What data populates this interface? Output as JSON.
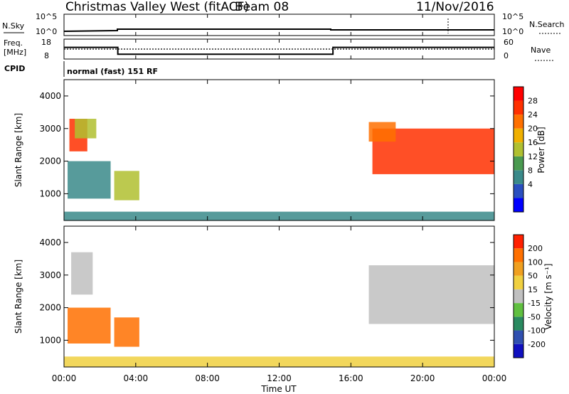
{
  "header": {
    "station": "Christmas Valley West (fitACF)",
    "beam": "Beam 08",
    "date": "11/Nov/2016"
  },
  "time_axis": {
    "label": "Time UT",
    "ticks": [
      "00:00",
      "04:00",
      "08:00",
      "12:00",
      "16:00",
      "20:00",
      "00:00"
    ]
  },
  "noise_panel": {
    "left_label": "N.Sky",
    "right_label": "N.Search",
    "ticks_left": [
      "10^5",
      "10^0"
    ],
    "ticks_right": [
      "10^5",
      "10^0"
    ]
  },
  "freq_panel": {
    "left_label_1": "Freq.",
    "left_label_2": "[MHz]",
    "right_label": "Nave",
    "ticks_left": [
      "18",
      "8"
    ],
    "ticks_right": [
      "60",
      "0"
    ]
  },
  "cpid": {
    "label": "CPID",
    "text": "normal (fast) 151 RF"
  },
  "range_panels": {
    "ylabel": "Slant Range [km]",
    "ticks": [
      "4000",
      "3000",
      "2000",
      "1000"
    ]
  },
  "power_scale": {
    "label": "Power [dB]",
    "ticks": [
      "28",
      "24",
      "20",
      "16",
      "12",
      "8",
      "4"
    ],
    "colors": [
      "#0000ff",
      "#2a4fc0",
      "#3a8a8a",
      "#4a9a50",
      "#b0c030",
      "#f0b000",
      "#ff7000",
      "#ff3000",
      "#ff0000"
    ]
  },
  "velocity_scale": {
    "label": "Velocity [m s⁻¹]",
    "ticks": [
      "200",
      "100",
      "50",
      "15",
      "-15",
      "-50",
      "-100",
      "-200"
    ],
    "colors": [
      "#1010c0",
      "#3050b0",
      "#2a8a60",
      "#60c040",
      "#c0c0c0",
      "#f0d040",
      "#f0a020",
      "#ff7000",
      "#ff2000"
    ]
  },
  "chart_data": {
    "type": "heatmap",
    "x_range": [
      "00:00",
      "00:00"
    ],
    "y_range": [
      180,
      4500
    ],
    "frequency_segments_mhz": [
      {
        "start_h": 0,
        "end_h": 3,
        "value": 14
      },
      {
        "start_h": 3,
        "end_h": 15,
        "value": 10
      },
      {
        "start_h": 15,
        "end_h": 24,
        "value": 14
      }
    ],
    "nave_level": 30,
    "power_regions": [
      {
        "t0": 0.3,
        "t1": 1.3,
        "r0": 2300,
        "r1": 3300,
        "color": "#ff3000"
      },
      {
        "t0": 0.6,
        "t1": 1.8,
        "r0": 2700,
        "r1": 3300,
        "color": "#b0c030"
      },
      {
        "t0": 0.2,
        "t1": 2.6,
        "r0": 850,
        "r1": 2000,
        "color": "#3a8a8a"
      },
      {
        "t0": 2.8,
        "t1": 4.2,
        "r0": 800,
        "r1": 1700,
        "color": "#b0c030"
      },
      {
        "t0": 17.2,
        "t1": 24,
        "r0": 1600,
        "r1": 3000,
        "color": "#ff3000"
      },
      {
        "t0": 17.0,
        "t1": 18.5,
        "r0": 2600,
        "r1": 3200,
        "color": "#ff7000"
      },
      {
        "t0": 0,
        "t1": 24,
        "r0": 180,
        "r1": 450,
        "color": "#3a8a8a"
      }
    ],
    "velocity_regions": [
      {
        "t0": 0.4,
        "t1": 1.6,
        "r0": 2400,
        "r1": 3700,
        "color": "#c0c0c0"
      },
      {
        "t0": 0.2,
        "t1": 2.6,
        "r0": 900,
        "r1": 2000,
        "color": "#ff7000"
      },
      {
        "t0": 2.8,
        "t1": 4.2,
        "r0": 800,
        "r1": 1700,
        "color": "#ff7000"
      },
      {
        "t0": 17.0,
        "t1": 24,
        "r0": 1500,
        "r1": 3300,
        "color": "#c0c0c0"
      },
      {
        "t0": 0,
        "t1": 24,
        "r0": 180,
        "r1": 500,
        "color": "#f0d040"
      }
    ]
  }
}
